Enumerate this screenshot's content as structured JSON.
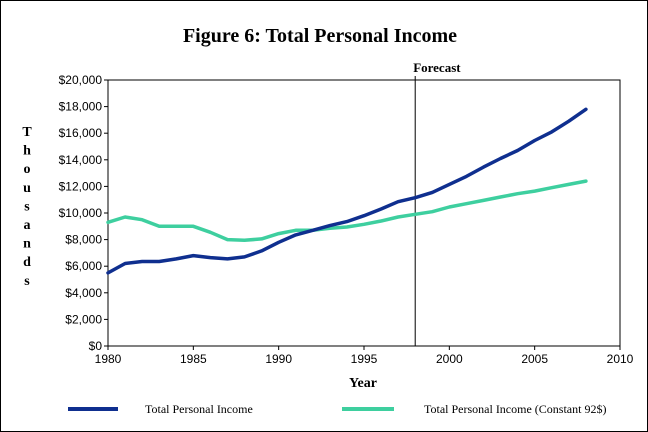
{
  "chart_data": {
    "type": "line",
    "title": "Figure 6:  Total Personal Income",
    "xlabel": "Year",
    "ylabel": "Thousands",
    "xlim": [
      1980,
      2010
    ],
    "ylim": [
      0,
      20000
    ],
    "x_ticks": [
      1980,
      1985,
      1990,
      1995,
      2000,
      2005,
      2010
    ],
    "y_ticks": [
      0,
      2000,
      4000,
      6000,
      8000,
      10000,
      12000,
      14000,
      16000,
      18000,
      20000
    ],
    "y_tick_labels": [
      "$0",
      "$2,000",
      "$4,000",
      "$6,000",
      "$8,000",
      "$10,000",
      "$12,000",
      "$14,000",
      "$16,000",
      "$18,000",
      "$20,000"
    ],
    "grid": false,
    "legend_position": "bottom",
    "annotation": {
      "label": "Forecast",
      "x": 1998
    },
    "series": [
      {
        "name": "Total Personal Income",
        "color": "#0f2f8f",
        "x": [
          1980,
          1981,
          1982,
          1983,
          1984,
          1985,
          1986,
          1987,
          1988,
          1989,
          1990,
          1991,
          1992,
          1993,
          1994,
          1995,
          1996,
          1997,
          1998,
          1999,
          2000,
          2001,
          2002,
          2003,
          2004,
          2005,
          2006,
          2007,
          2008
        ],
        "values": [
          5500,
          6200,
          6350,
          6350,
          6550,
          6800,
          6650,
          6550,
          6700,
          7150,
          7800,
          8350,
          8700,
          9050,
          9350,
          9800,
          10300,
          10850,
          11150,
          11550,
          12150,
          12750,
          13450,
          14100,
          14700,
          15450,
          16100,
          16900,
          17800
        ]
      },
      {
        "name": "Total Personal Income (Constant 92$)",
        "color": "#3ecf9f",
        "x": [
          1980,
          1981,
          1982,
          1983,
          1984,
          1985,
          1986,
          1987,
          1988,
          1989,
          1990,
          1991,
          1992,
          1993,
          1994,
          1995,
          1996,
          1997,
          1998,
          1999,
          2000,
          2001,
          2002,
          2003,
          2004,
          2005,
          2006,
          2007,
          2008
        ],
        "values": [
          9300,
          9700,
          9500,
          9000,
          9000,
          9000,
          8550,
          8000,
          7950,
          8050,
          8450,
          8700,
          8700,
          8850,
          8950,
          9150,
          9400,
          9700,
          9900,
          10100,
          10450,
          10700,
          10950,
          11200,
          11450,
          11650,
          11900,
          12150,
          12400
        ]
      }
    ]
  }
}
